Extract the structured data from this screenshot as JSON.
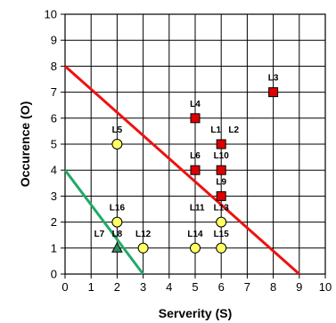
{
  "chart_data": {
    "type": "scatter",
    "xlabel": "Serverity (S)",
    "ylabel": "Occurence (O)",
    "xlim": [
      0,
      10
    ],
    "ylim": [
      0,
      10
    ],
    "x_ticks": [
      "0",
      "1",
      "2",
      "3",
      "4",
      "5",
      "6",
      "7",
      "8",
      "9",
      "10"
    ],
    "y_ticks": [
      "0",
      "1",
      "2",
      "3",
      "4",
      "5",
      "6",
      "7",
      "8",
      "9",
      "10"
    ],
    "grid": true,
    "colors": {
      "square_fill": "#dd0000",
      "circle_fill": "#ffff66",
      "triangle_fill": "#2e8b57",
      "red_line": "#ee1111",
      "green_line": "#22aa66"
    },
    "points": [
      {
        "label": "L1",
        "x": 6,
        "y": 5,
        "marker": "square"
      },
      {
        "label": "L2",
        "x": 6,
        "y": 5,
        "marker": "square"
      },
      {
        "label": "L3",
        "x": 8,
        "y": 7,
        "marker": "square"
      },
      {
        "label": "L4",
        "x": 5,
        "y": 6,
        "marker": "square"
      },
      {
        "label": "L5",
        "x": 2,
        "y": 5,
        "marker": "circle"
      },
      {
        "label": "L6",
        "x": 5,
        "y": 4,
        "marker": "square"
      },
      {
        "label": "L7",
        "x": 2,
        "y": 1,
        "marker": "triangle"
      },
      {
        "label": "L8",
        "x": 2,
        "y": 1,
        "marker": "triangle"
      },
      {
        "label": "L9",
        "x": 6,
        "y": 3,
        "marker": "square"
      },
      {
        "label": "L10",
        "x": 6,
        "y": 4,
        "marker": "square"
      },
      {
        "label": "L11",
        "x": 6,
        "y": 2,
        "marker": "circle"
      },
      {
        "label": "L12",
        "x": 3,
        "y": 1,
        "marker": "circle"
      },
      {
        "label": "L13",
        "x": 6,
        "y": 2,
        "marker": "circle"
      },
      {
        "label": "L14",
        "x": 5,
        "y": 1,
        "marker": "circle"
      },
      {
        "label": "L15",
        "x": 6,
        "y": 1,
        "marker": "circle"
      },
      {
        "label": "L16",
        "x": 2,
        "y": 2,
        "marker": "circle"
      }
    ],
    "lines": [
      {
        "color": "red",
        "x": [
          0,
          9
        ],
        "y": [
          8,
          0
        ]
      },
      {
        "color": "green",
        "x": [
          0,
          3
        ],
        "y": [
          4,
          0
        ]
      }
    ]
  }
}
